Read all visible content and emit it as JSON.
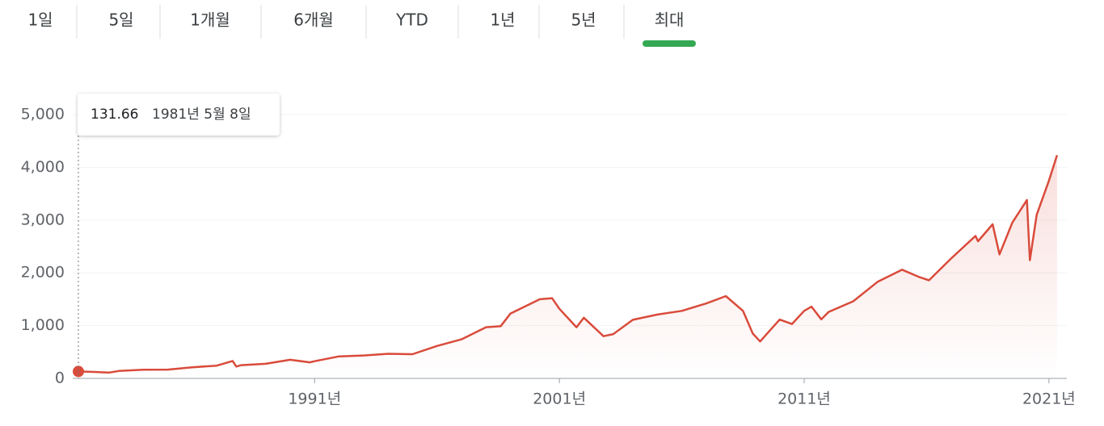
{
  "tabs": [
    {
      "label": "1일"
    },
    {
      "label": "5일"
    },
    {
      "label": "1개월"
    },
    {
      "label": "6개월"
    },
    {
      "label": "YTD"
    },
    {
      "label": "1년"
    },
    {
      "label": "5년"
    },
    {
      "label": "최대",
      "selected": true
    }
  ],
  "chart_data": {
    "type": "line",
    "color": "#d94b3b",
    "grid": true,
    "hover_date": "1981년 5월 8일",
    "x": [
      1981.35,
      1982.0,
      1982.6,
      1983.0,
      1984.0,
      1985.0,
      1986.0,
      1987.0,
      1987.65,
      1987.8,
      1988.0,
      1989.0,
      1990.0,
      1990.8,
      1991.0,
      1992.0,
      1993.0,
      1994.0,
      1995.0,
      1996.0,
      1997.0,
      1998.0,
      1998.6,
      1999.0,
      2000.2,
      2000.7,
      2001.0,
      2001.7,
      2002.0,
      2002.8,
      2003.2,
      2004.0,
      2005.0,
      2006.0,
      2007.0,
      2007.8,
      2008.5,
      2008.9,
      2009.2,
      2010.0,
      2010.5,
      2011.0,
      2011.3,
      2011.7,
      2012.0,
      2013.0,
      2014.0,
      2015.0,
      2015.7,
      2016.1,
      2017.0,
      2018.0,
      2018.1,
      2018.7,
      2018.98,
      2019.5,
      2020.1,
      2020.22,
      2020.5,
      2021.0,
      2021.33
    ],
    "values": [
      131.66,
      122,
      110,
      140,
      165,
      167,
      211,
      242,
      330,
      225,
      250,
      277,
      353,
      305,
      326,
      417,
      435,
      466,
      459,
      615,
      740,
      970,
      990,
      1229,
      1500,
      1520,
      1320,
      970,
      1150,
      800,
      840,
      1110,
      1210,
      1280,
      1420,
      1560,
      1280,
      850,
      700,
      1115,
      1030,
      1280,
      1360,
      1120,
      1260,
      1460,
      1830,
      2060,
      1920,
      1860,
      2270,
      2700,
      2600,
      2920,
      2350,
      2950,
      3380,
      2240,
      3100,
      3750,
      4230
    ],
    "xlim": [
      1981.35,
      2021.4
    ],
    "xticks": [
      {
        "value": 1991,
        "label": "1991년"
      },
      {
        "value": 2001,
        "label": "2001년"
      },
      {
        "value": 2011,
        "label": "2011년"
      },
      {
        "value": 2021,
        "label": "2021년"
      }
    ],
    "ylim": [
      0,
      5000
    ],
    "yticks": [
      0,
      {
        "value": 1000,
        "label": "1,000"
      },
      {
        "value": 2000,
        "label": "2,000"
      },
      {
        "value": 3000,
        "label": "3,000"
      },
      {
        "value": 4000,
        "label": "4,000"
      },
      {
        "value": 5000,
        "label": "5,000"
      }
    ]
  }
}
